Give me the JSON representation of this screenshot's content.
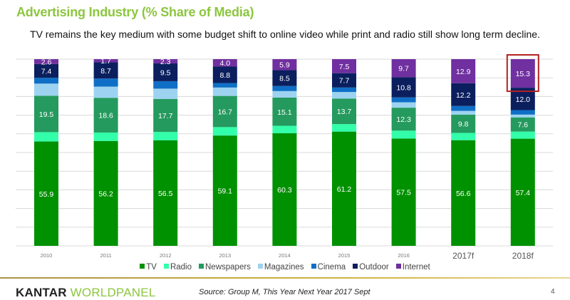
{
  "slide": {
    "title": "Advertising Industry (% Share of Media)",
    "subtitle": "TV remains the key medium with some budget shift to online video while print and radio still show long term decline.",
    "logo_part1": "KANTAR",
    "logo_part2": "WORLDPANEL",
    "source": "Source: Group M, This Year Next Year 2017 Sept",
    "page_number": "4",
    "colors": {
      "title": "#8cc63f",
      "highlight_box": "#b22222"
    }
  },
  "chart_data": {
    "type": "bar",
    "stacked": true,
    "title": "Advertising Industry (% Share of Media)",
    "xlabel": "",
    "ylabel": "",
    "ylim": [
      0,
      100
    ],
    "grid": true,
    "legend_position": "bottom",
    "categories": [
      "2010",
      "2011",
      "2012",
      "2013",
      "2014",
      "2015",
      "2016",
      "2017f",
      "2018f"
    ],
    "emphasized_categories": [
      "2017f",
      "2018f"
    ],
    "highlight": {
      "series": "Internet",
      "category": "2018f"
    },
    "series": [
      {
        "name": "TV",
        "color": "#009100",
        "labeled": true,
        "values": [
          55.9,
          56.2,
          56.5,
          59.1,
          60.3,
          61.2,
          57.5,
          56.6,
          57.4
        ]
      },
      {
        "name": "Radio",
        "color": "#33ffaa",
        "labeled": false,
        "values": [
          5.0,
          4.5,
          4.5,
          4.5,
          4.0,
          4.0,
          4.2,
          3.9,
          3.8
        ]
      },
      {
        "name": "Newspapers",
        "color": "#259a5e",
        "labeled": true,
        "values": [
          19.5,
          18.6,
          17.7,
          16.7,
          15.1,
          13.7,
          12.3,
          9.8,
          7.6
        ]
      },
      {
        "name": "Magazines",
        "color": "#9dd3f0",
        "labeled": false,
        "values": [
          6.5,
          6.0,
          5.5,
          4.5,
          3.5,
          3.5,
          2.9,
          2.0,
          1.5
        ]
      },
      {
        "name": "Cinema",
        "color": "#0f6fc6",
        "labeled": false,
        "values": [
          3.1,
          4.3,
          4.0,
          2.4,
          2.7,
          2.4,
          2.6,
          2.6,
          2.4
        ]
      },
      {
        "name": "Outdoor",
        "color": "#0b1f5e",
        "labeled": true,
        "values": [
          7.4,
          8.7,
          9.5,
          8.8,
          8.5,
          7.7,
          10.8,
          12.2,
          12.0
        ]
      },
      {
        "name": "Internet",
        "color": "#7030a0",
        "labeled": true,
        "values": [
          2.6,
          1.7,
          2.3,
          4.0,
          5.9,
          7.5,
          9.7,
          12.9,
          15.3
        ]
      }
    ]
  }
}
